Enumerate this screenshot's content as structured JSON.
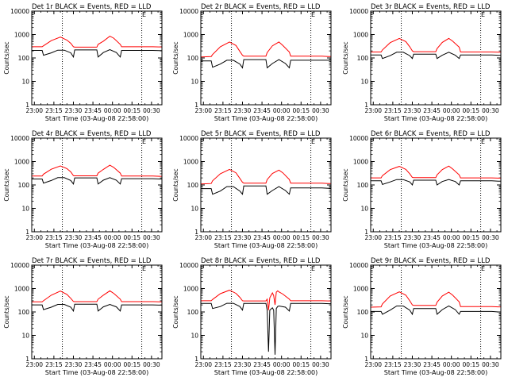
{
  "figure": {
    "xlabel": "Start Time (03-Aug-08 22:58:00)",
    "ylabel": "Counts/sec",
    "x_ticks": [
      "23:00",
      "23:15",
      "23:30",
      "23:45",
      "00:00",
      "00:15",
      "00:30"
    ],
    "y_ticks": [
      "1",
      "10",
      "100",
      "1000",
      "10000"
    ],
    "corner_mark": "E"
  },
  "colors": {
    "events": "#000000",
    "lld": "#ff0000",
    "axis": "#000000"
  },
  "chart_data": [
    {
      "type": "line",
      "title": "Det 1r BLACK = Events, RED = LLD",
      "xlim_minutes_after_23_00": [
        0,
        100
      ],
      "ylim": [
        1,
        10000
      ],
      "log_y": true,
      "series": [
        {
          "name": "Events",
          "x": [
            0,
            8,
            9,
            15,
            20,
            25,
            30,
            32,
            33,
            50,
            51,
            55,
            60,
            65,
            68,
            69,
            82,
            83,
            88,
            93,
            98,
            100
          ],
          "y": [
            210,
            210,
            130,
            165,
            215,
            215,
            165,
            110,
            220,
            220,
            110,
            170,
            225,
            170,
            110,
            210,
            210,
            210,
            210,
            210,
            205,
            205
          ]
        },
        {
          "name": "LLD",
          "x": [
            0,
            8,
            9,
            15,
            22,
            27,
            30,
            32,
            33,
            50,
            51,
            55,
            60,
            63,
            68,
            69,
            82,
            83,
            88,
            93,
            98,
            100
          ],
          "y": [
            300,
            300,
            330,
            550,
            780,
            580,
            420,
            300,
            290,
            290,
            380,
            520,
            850,
            700,
            380,
            300,
            300,
            300,
            300,
            300,
            295,
            295
          ]
        }
      ]
    },
    {
      "type": "line",
      "title": "Det 2r BLACK = Events, RED = LLD",
      "xlim_minutes_after_23_00": [
        0,
        100
      ],
      "ylim": [
        1,
        10000
      ],
      "log_y": true,
      "series": [
        {
          "name": "Events",
          "x": [
            0,
            8,
            9,
            15,
            20,
            25,
            30,
            32,
            33,
            50,
            51,
            55,
            60,
            65,
            68,
            69,
            82,
            83,
            88,
            93,
            98,
            100
          ],
          "y": [
            75,
            75,
            40,
            55,
            80,
            80,
            55,
            38,
            85,
            85,
            38,
            58,
            85,
            58,
            38,
            80,
            80,
            80,
            80,
            80,
            80,
            80
          ]
        },
        {
          "name": "LLD",
          "x": [
            0,
            8,
            9,
            15,
            22,
            27,
            30,
            32,
            33,
            50,
            51,
            55,
            60,
            63,
            68,
            69,
            82,
            83,
            88,
            93,
            98,
            100
          ],
          "y": [
            110,
            115,
            140,
            300,
            480,
            340,
            190,
            130,
            120,
            120,
            170,
            330,
            480,
            340,
            180,
            120,
            120,
            120,
            120,
            120,
            115,
            115
          ]
        }
      ]
    },
    {
      "type": "line",
      "title": "Det 3r BLACK = Events, RED = LLD",
      "xlim_minutes_after_23_00": [
        0,
        100
      ],
      "ylim": [
        1,
        10000
      ],
      "log_y": true,
      "series": [
        {
          "name": "Events",
          "x": [
            0,
            8,
            9,
            15,
            20,
            25,
            30,
            32,
            33,
            50,
            51,
            55,
            60,
            65,
            68,
            69,
            82,
            83,
            88,
            93,
            98,
            100
          ],
          "y": [
            135,
            135,
            95,
            125,
            175,
            175,
            125,
            95,
            145,
            145,
            95,
            130,
            175,
            130,
            95,
            135,
            135,
            135,
            135,
            135,
            130,
            130
          ]
        },
        {
          "name": "LLD",
          "x": [
            0,
            8,
            9,
            15,
            22,
            27,
            30,
            32,
            33,
            50,
            51,
            55,
            60,
            63,
            68,
            69,
            82,
            83,
            88,
            93,
            98,
            100
          ],
          "y": [
            180,
            180,
            220,
            450,
            680,
            500,
            300,
            200,
            185,
            185,
            250,
            460,
            680,
            520,
            290,
            180,
            180,
            180,
            180,
            180,
            175,
            175
          ]
        }
      ]
    },
    {
      "type": "line",
      "title": "Det 4r BLACK = Events, RED = LLD",
      "xlim_minutes_after_23_00": [
        0,
        100
      ],
      "ylim": [
        1,
        10000
      ],
      "log_y": true,
      "series": [
        {
          "name": "Events",
          "x": [
            0,
            8,
            9,
            15,
            20,
            25,
            30,
            32,
            33,
            50,
            51,
            55,
            60,
            65,
            68,
            69,
            82,
            83,
            88,
            93,
            98,
            100
          ],
          "y": [
            180,
            180,
            120,
            155,
            205,
            205,
            155,
            110,
            200,
            200,
            110,
            160,
            205,
            160,
            110,
            185,
            185,
            185,
            185,
            185,
            180,
            180
          ]
        },
        {
          "name": "LLD",
          "x": [
            0,
            8,
            9,
            15,
            22,
            27,
            30,
            32,
            33,
            50,
            51,
            55,
            60,
            63,
            68,
            69,
            82,
            83,
            88,
            93,
            98,
            100
          ],
          "y": [
            240,
            240,
            290,
            470,
            650,
            500,
            360,
            250,
            245,
            245,
            320,
            460,
            700,
            560,
            320,
            240,
            240,
            240,
            240,
            240,
            235,
            235
          ]
        }
      ]
    },
    {
      "type": "line",
      "title": "Det 5r BLACK = Events, RED = LLD",
      "xlim_minutes_after_23_00": [
        0,
        100
      ],
      "ylim": [
        1,
        10000
      ],
      "log_y": true,
      "series": [
        {
          "name": "Events",
          "x": [
            0,
            8,
            9,
            15,
            20,
            25,
            30,
            32,
            33,
            50,
            51,
            55,
            60,
            65,
            68,
            69,
            82,
            83,
            88,
            93,
            98,
            100
          ],
          "y": [
            70,
            70,
            40,
            55,
            85,
            85,
            55,
            40,
            90,
            90,
            40,
            58,
            85,
            58,
            40,
            75,
            75,
            75,
            75,
            75,
            72,
            72
          ]
        },
        {
          "name": "LLD",
          "x": [
            0,
            8,
            9,
            15,
            22,
            27,
            30,
            32,
            33,
            50,
            51,
            55,
            60,
            63,
            68,
            69,
            82,
            83,
            88,
            93,
            98,
            100
          ],
          "y": [
            110,
            115,
            150,
            300,
            460,
            330,
            190,
            130,
            120,
            120,
            170,
            310,
            430,
            330,
            170,
            120,
            120,
            120,
            120,
            120,
            115,
            115
          ]
        }
      ]
    },
    {
      "type": "line",
      "title": "Det 6r BLACK = Events, RED = LLD",
      "xlim_minutes_after_23_00": [
        0,
        100
      ],
      "ylim": [
        1,
        10000
      ],
      "log_y": true,
      "series": [
        {
          "name": "Events",
          "x": [
            0,
            8,
            9,
            15,
            20,
            25,
            30,
            32,
            33,
            50,
            51,
            55,
            60,
            65,
            68,
            69,
            82,
            83,
            88,
            93,
            98,
            100
          ],
          "y": [
            150,
            150,
            105,
            135,
            170,
            170,
            135,
            100,
            160,
            160,
            100,
            140,
            170,
            140,
            100,
            150,
            150,
            150,
            150,
            150,
            145,
            145
          ]
        },
        {
          "name": "LLD",
          "x": [
            0,
            8,
            9,
            15,
            22,
            27,
            30,
            32,
            33,
            50,
            51,
            55,
            60,
            63,
            68,
            69,
            82,
            83,
            88,
            93,
            98,
            100
          ],
          "y": [
            200,
            200,
            250,
            450,
            620,
            460,
            300,
            210,
            205,
            205,
            270,
            450,
            640,
            480,
            270,
            200,
            200,
            200,
            200,
            200,
            195,
            195
          ]
        }
      ]
    },
    {
      "type": "line",
      "title": "Det 7r BLACK = Events, RED = LLD",
      "xlim_minutes_after_23_00": [
        0,
        100
      ],
      "ylim": [
        1,
        10000
      ],
      "log_y": true,
      "series": [
        {
          "name": "Events",
          "x": [
            0,
            8,
            9,
            15,
            20,
            25,
            30,
            32,
            33,
            50,
            51,
            55,
            60,
            65,
            68,
            69,
            82,
            83,
            88,
            93,
            98,
            100
          ],
          "y": [
            200,
            200,
            125,
            160,
            210,
            210,
            160,
            110,
            215,
            215,
            110,
            165,
            210,
            165,
            110,
            200,
            200,
            200,
            200,
            200,
            195,
            195
          ]
        },
        {
          "name": "LLD",
          "x": [
            0,
            8,
            9,
            15,
            22,
            27,
            30,
            32,
            33,
            50,
            51,
            55,
            60,
            63,
            68,
            69,
            82,
            83,
            88,
            93,
            98,
            100
          ],
          "y": [
            270,
            270,
            300,
            520,
            780,
            560,
            380,
            280,
            275,
            275,
            350,
            520,
            800,
            620,
            350,
            275,
            275,
            275,
            275,
            275,
            270,
            270
          ]
        }
      ]
    },
    {
      "type": "line",
      "title": "Det 8r BLACK = Events, RED = LLD",
      "xlim_minutes_after_23_00": [
        0,
        100
      ],
      "ylim": [
        1,
        10000
      ],
      "log_y": true,
      "series": [
        {
          "name": "Events",
          "x": [
            0,
            8,
            9,
            15,
            20,
            25,
            30,
            32,
            33,
            50,
            51,
            52,
            53,
            55,
            56,
            57,
            58,
            59,
            60,
            65,
            68,
            69,
            82,
            83,
            88,
            93,
            98,
            100
          ],
          "y": [
            230,
            230,
            140,
            170,
            235,
            235,
            170,
            120,
            230,
            230,
            120,
            2,
            120,
            150,
            120,
            1.5,
            140,
            170,
            180,
            160,
            110,
            230,
            230,
            230,
            230,
            230,
            225,
            225
          ]
        },
        {
          "name": "LLD",
          "x": [
            0,
            8,
            9,
            15,
            22,
            27,
            30,
            32,
            33,
            50,
            51,
            52,
            53,
            55,
            56,
            57,
            58,
            59,
            60,
            63,
            68,
            69,
            82,
            83,
            88,
            93,
            98,
            100
          ],
          "y": [
            300,
            300,
            340,
            600,
            850,
            620,
            420,
            300,
            295,
            295,
            350,
            120,
            400,
            650,
            500,
            200,
            700,
            800,
            720,
            580,
            350,
            300,
            300,
            300,
            300,
            300,
            295,
            295
          ]
        }
      ]
    },
    {
      "type": "line",
      "title": "Det 9r BLACK = Events, RED = LLD",
      "xlim_minutes_after_23_00": [
        0,
        100
      ],
      "ylim": [
        1,
        10000
      ],
      "log_y": true,
      "series": [
        {
          "name": "Events",
          "x": [
            0,
            8,
            9,
            15,
            20,
            25,
            30,
            32,
            33,
            50,
            51,
            55,
            60,
            65,
            68,
            69,
            82,
            83,
            88,
            93,
            98,
            100
          ],
          "y": [
            105,
            105,
            80,
            120,
            180,
            180,
            120,
            80,
            140,
            140,
            80,
            125,
            180,
            125,
            80,
            105,
            105,
            105,
            105,
            105,
            100,
            100
          ]
        },
        {
          "name": "LLD",
          "x": [
            0,
            8,
            9,
            15,
            22,
            27,
            30,
            32,
            33,
            50,
            51,
            55,
            60,
            63,
            68,
            69,
            82,
            83,
            88,
            93,
            98,
            100
          ],
          "y": [
            160,
            165,
            220,
            480,
            720,
            520,
            300,
            200,
            190,
            190,
            260,
            480,
            700,
            520,
            270,
            170,
            170,
            170,
            170,
            170,
            165,
            165
          ]
        }
      ]
    }
  ]
}
